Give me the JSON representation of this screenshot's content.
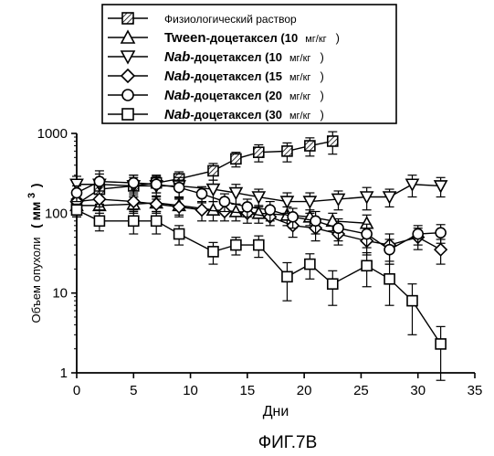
{
  "figure_caption": "ФИГ.7B",
  "chart_data": {
    "type": "line",
    "xlabel": "Дни",
    "ylabel": "Объем опухоли",
    "ylabel_unit": "( мм",
    "ylabel_unit_sup": "3",
    "ylabel_unit_close": ")",
    "xlim": [
      0,
      35
    ],
    "ylim": [
      1,
      1000
    ],
    "y_scale": "log",
    "x_ticks": [
      0,
      5,
      10,
      15,
      20,
      25,
      30,
      35
    ],
    "y_ticks": [
      1,
      10,
      100,
      1000
    ],
    "legend_placement": "top",
    "series": [
      {
        "legend_bold": "",
        "legend_text": "Физиологический раствор",
        "legend_unit": "",
        "legend_close": "",
        "marker": "hatched-square",
        "x": [
          0,
          2,
          5,
          7,
          9,
          12,
          14,
          16,
          18.5,
          20.5,
          22.5
        ],
        "y": [
          130,
          200,
          220,
          240,
          270,
          340,
          480,
          580,
          600,
          700,
          800
        ],
        "err": [
          40,
          70,
          60,
          60,
          60,
          80,
          100,
          140,
          160,
          180,
          250
        ]
      },
      {
        "legend_bold": "Tween",
        "legend_text": "-доцетаксел (10",
        "legend_unit": "мг/кг",
        "legend_close": ")",
        "marker": "triangle-up",
        "x": [
          0,
          2,
          5,
          7,
          9,
          12,
          14,
          16,
          18.5,
          20.5,
          22.5,
          25.5
        ],
        "y": [
          125,
          125,
          130,
          135,
          125,
          110,
          105,
          100,
          95,
          90,
          80,
          75
        ],
        "err": [
          30,
          35,
          30,
          30,
          30,
          30,
          25,
          25,
          25,
          20,
          20,
          20
        ]
      },
      {
        "legend_bold": "Nab",
        "legend_text": "-доцетаксел (10",
        "legend_unit": "мг/кг",
        "legend_close": ")",
        "marker": "triangle-down",
        "x": [
          0,
          2,
          5,
          7,
          9,
          12,
          14,
          16,
          18.5,
          20.5,
          23,
          25.5,
          27.5,
          29.5,
          32
        ],
        "y": [
          230,
          230,
          220,
          220,
          220,
          200,
          180,
          160,
          140,
          140,
          150,
          160,
          160,
          230,
          220
        ],
        "err": [
          60,
          110,
          80,
          70,
          60,
          60,
          50,
          40,
          40,
          40,
          40,
          50,
          40,
          70,
          60
        ]
      },
      {
        "legend_bold": "Nab",
        "legend_text": "-доцетаксел (15",
        "legend_unit": "мг/кг",
        "legend_close": ")",
        "marker": "diamond",
        "x": [
          0,
          2,
          5,
          7,
          9,
          11,
          13,
          15,
          17,
          19,
          21,
          23,
          25.5,
          27.5,
          30,
          32
        ],
        "y": [
          140,
          150,
          140,
          130,
          120,
          110,
          105,
          100,
          90,
          70,
          65,
          55,
          45,
          40,
          50,
          35
        ],
        "err": [
          30,
          40,
          30,
          30,
          30,
          30,
          25,
          25,
          20,
          20,
          20,
          15,
          15,
          15,
          15,
          12
        ]
      },
      {
        "legend_bold": "Nab",
        "legend_text": "-доцетаксел (20",
        "legend_unit": "мг/кг",
        "legend_close": ")",
        "marker": "circle",
        "x": [
          0,
          2,
          5,
          7,
          9,
          11,
          13,
          15,
          17,
          19,
          21,
          23,
          25.5,
          27.5,
          30,
          32
        ],
        "y": [
          180,
          250,
          240,
          230,
          210,
          175,
          140,
          120,
          110,
          90,
          80,
          65,
          55,
          35,
          55,
          57
        ],
        "err": [
          40,
          60,
          60,
          50,
          50,
          40,
          35,
          30,
          30,
          25,
          25,
          20,
          18,
          12,
          15,
          15
        ]
      },
      {
        "legend_bold": "Nab",
        "legend_text": "-доцетаксел (30",
        "legend_unit": "мг/кг",
        "legend_close": ")",
        "marker": "square",
        "x": [
          0,
          2,
          5,
          7,
          9,
          12,
          14,
          16,
          18.5,
          20.5,
          22.5,
          25.5,
          27.5,
          29.5,
          32
        ],
        "y": [
          110,
          80,
          80,
          80,
          55,
          33,
          40,
          40,
          16,
          23,
          13,
          22,
          15,
          8,
          2.3
        ],
        "err": [
          20,
          20,
          25,
          25,
          15,
          10,
          10,
          12,
          8,
          8,
          6,
          10,
          8,
          5,
          1.5
        ]
      }
    ]
  }
}
